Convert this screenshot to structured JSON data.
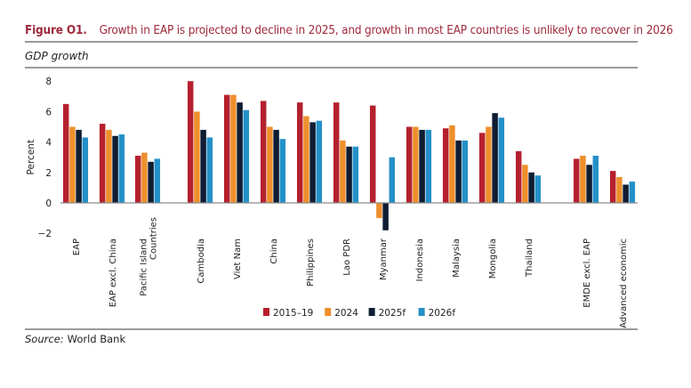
{
  "figure_label": "Figure O1.",
  "title": "Growth in EAP is projected to decline in 2025, and growth in most EAP countries is unlikely to recover in 2026",
  "subtitle": "GDP growth",
  "source_label": "Source:",
  "source_text": "World Bank",
  "chart_data": {
    "type": "bar",
    "ylabel": "Percent",
    "ylim": [
      -2,
      8
    ],
    "yticks": [
      -2,
      0,
      2,
      4,
      6,
      8
    ],
    "grid": false,
    "legend_placement": "bottom",
    "categories": [
      "EAP",
      "EAP excl. China",
      "Pacific Island Countries",
      "Cambodia",
      "Viet Nam",
      "China",
      "Philippines",
      "Lao PDR",
      "Myanmar",
      "Indonesia",
      "Malaysia",
      "Mongolia",
      "Thailand",
      "EMDE excl. EAP",
      "Advanced economic"
    ],
    "category_lines": [
      [
        "EAP"
      ],
      [
        "EAP excl. China"
      ],
      [
        "Pacific Island",
        "Countries"
      ],
      [
        "Cambodia"
      ],
      [
        "Viet Nam"
      ],
      [
        "China"
      ],
      [
        "Philippines"
      ],
      [
        "Lao PDR"
      ],
      [
        "Myanmar"
      ],
      [
        "Indonesia"
      ],
      [
        "Malaysia"
      ],
      [
        "Mongolia"
      ],
      [
        "Thailand"
      ],
      [
        "EMDE excl. EAP"
      ],
      [
        "Advanced economic"
      ]
    ],
    "series": [
      {
        "name": "2015–19",
        "color": "#b5202e",
        "values": [
          6.5,
          5.2,
          3.1,
          8.0,
          7.1,
          6.7,
          6.6,
          6.6,
          6.4,
          5.0,
          4.9,
          4.6,
          3.4,
          2.9,
          2.1
        ]
      },
      {
        "name": "2024",
        "color": "#ee8f2d",
        "values": [
          5.0,
          4.8,
          3.3,
          6.0,
          7.1,
          5.0,
          5.7,
          4.1,
          -1.0,
          5.0,
          5.1,
          5.0,
          2.5,
          3.1,
          1.7
        ]
      },
      {
        "name": "2025f",
        "color": "#0f1d33",
        "values": [
          4.8,
          4.4,
          2.7,
          4.8,
          6.6,
          4.8,
          5.3,
          3.7,
          -1.8,
          4.8,
          4.1,
          5.9,
          2.0,
          2.5,
          1.2
        ]
      },
      {
        "name": "2026f",
        "color": "#2490c8",
        "values": [
          4.3,
          4.5,
          2.9,
          4.3,
          6.1,
          4.2,
          5.4,
          3.7,
          3.0,
          4.8,
          4.1,
          5.6,
          1.8,
          3.1,
          1.4
        ]
      }
    ]
  }
}
